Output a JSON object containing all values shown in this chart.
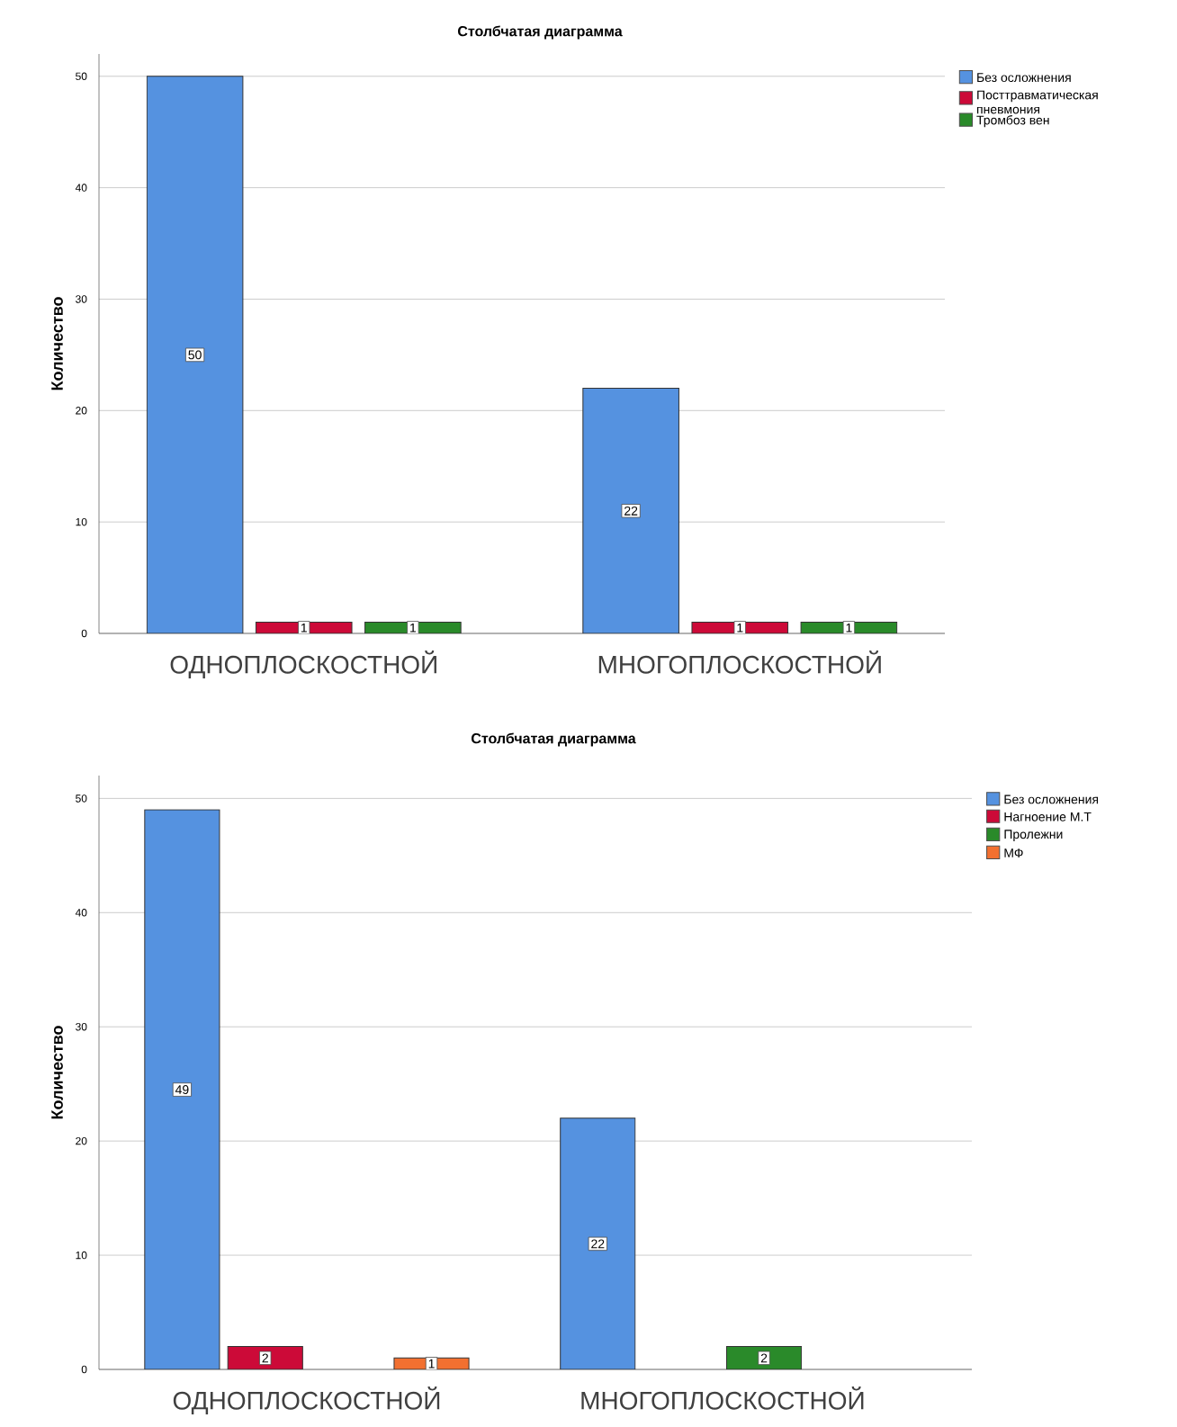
{
  "chart_data": [
    {
      "type": "bar",
      "title": "Столбчатая диаграмма",
      "ylabel": "Количество",
      "categories": [
        "ОДНОПЛОСКОСТНОЙ",
        "МНОГОПЛОСКОСТНОЙ"
      ],
      "series": [
        {
          "name": "Без осложнения",
          "color": "#5592e0",
          "values": [
            50,
            22
          ]
        },
        {
          "name": "Посттравматическая пневмония",
          "color": "#cc0a38",
          "values": [
            1,
            1
          ]
        },
        {
          "name": "Тромбоз вен",
          "color": "#2a8a2a",
          "values": [
            1,
            1
          ]
        }
      ],
      "ylim": [
        0,
        52
      ],
      "yticks": [
        0,
        10,
        20,
        30,
        40,
        50
      ],
      "grid": "y",
      "legend": "right",
      "data_labels": true
    },
    {
      "type": "bar",
      "title": "Столбчатая диаграмма",
      "ylabel": "Количество",
      "categories": [
        "ОДНОПЛОСКОСТНОЙ",
        "МНОГОПЛОСКОСТНОЙ"
      ],
      "series": [
        {
          "name": "Без осложнения",
          "color": "#5592e0",
          "values": [
            49,
            22
          ]
        },
        {
          "name": "Нагноение М.Т",
          "color": "#cc0a38",
          "values": [
            2,
            null
          ]
        },
        {
          "name": "Пролежни",
          "color": "#2a8a2a",
          "values": [
            null,
            2
          ]
        },
        {
          "name": "МФ",
          "color": "#f27030",
          "values": [
            1,
            null
          ]
        }
      ],
      "ylim": [
        0,
        52
      ],
      "yticks": [
        0,
        10,
        20,
        30,
        40,
        50
      ],
      "grid": "y",
      "legend": "right",
      "data_labels": true
    }
  ]
}
